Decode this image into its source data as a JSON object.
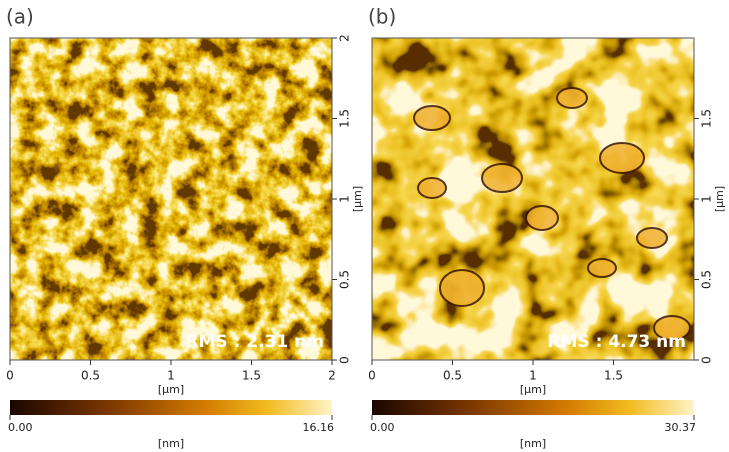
{
  "panels": [
    {
      "label": "(a)",
      "annotation": "RMS : 2.31 nm",
      "x_axis": {
        "range": [
          0,
          2
        ],
        "ticks": [
          0,
          0.5,
          1,
          1.5,
          2
        ],
        "label": "[μm]"
      },
      "y_axis": {
        "range": [
          0,
          2
        ],
        "ticks": [
          0,
          0.5,
          1,
          1.5,
          2
        ],
        "label": "[μm]"
      },
      "colorbar": {
        "min": {
          "value": 0,
          "label": "0.00"
        },
        "max": 16.16,
        "label": "[nm]"
      }
    },
    {
      "label": "(b)",
      "annotation": "RMS : 4.73 nm",
      "x_axis": {
        "range": [
          0,
          2
        ],
        "ticks": [
          0,
          0.5,
          1,
          1.5
        ],
        "label": "[μm]"
      },
      "y_axis": {
        "range": [
          0,
          2
        ],
        "ticks": [
          0,
          0.5,
          1,
          1.5
        ],
        "label": "[μm]"
      },
      "colorbar": {
        "min": {
          "value": 0,
          "label": "0.00"
        },
        "max": 30.37,
        "label": "[nm]"
      }
    }
  ]
}
